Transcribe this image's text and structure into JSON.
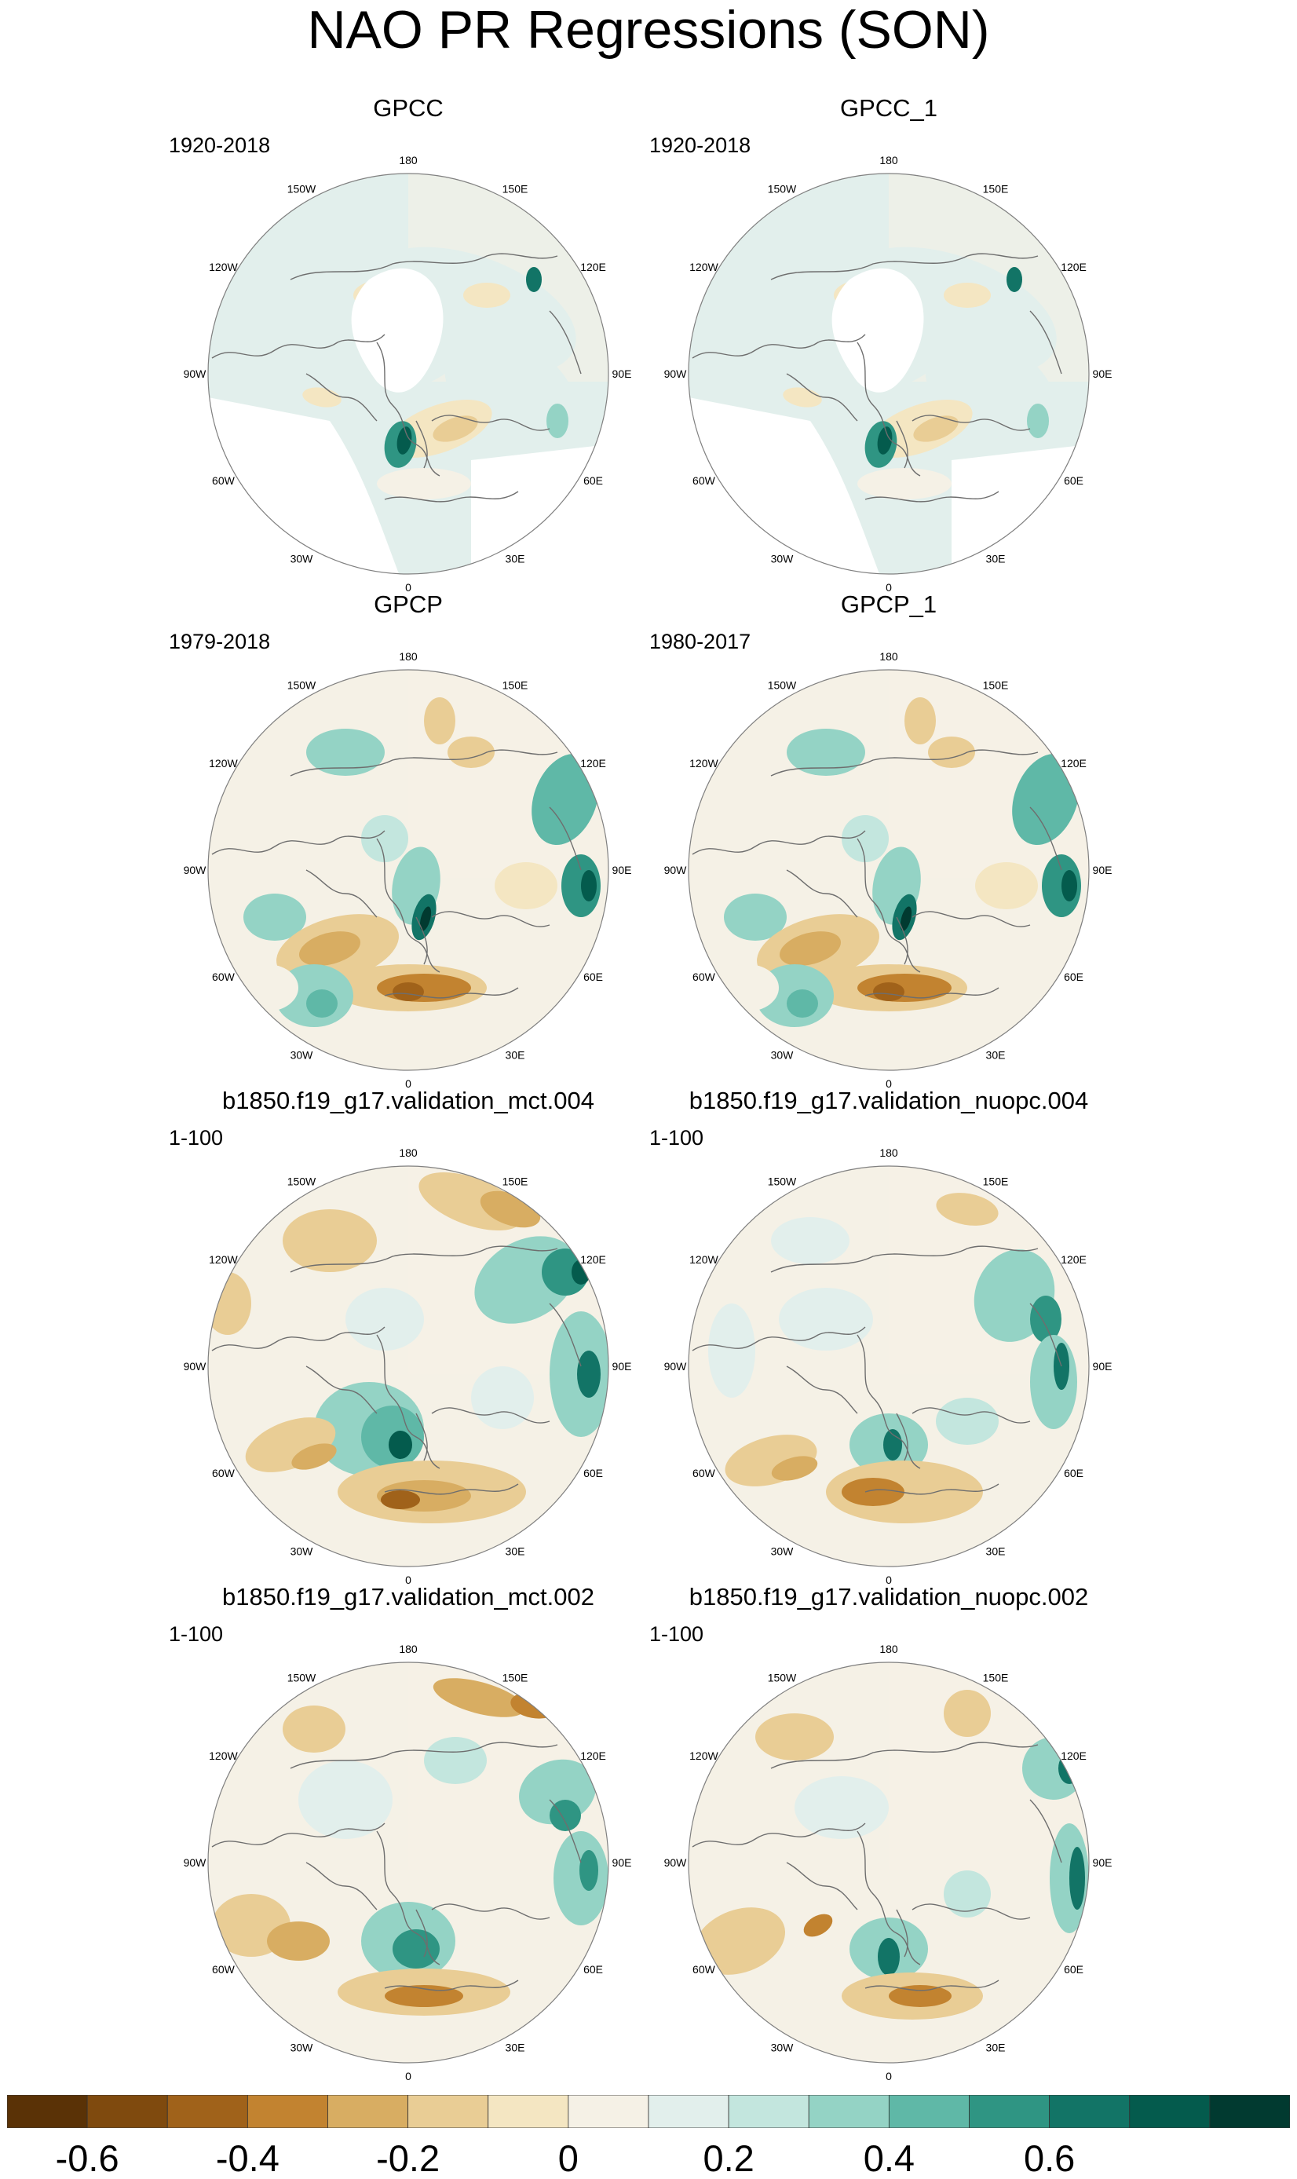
{
  "title": "NAO PR Regressions (SON)",
  "panels": [
    {
      "id": "gpcc",
      "title": "GPCC",
      "period": "1920-2018"
    },
    {
      "id": "gpcc-1",
      "title": "GPCC_1",
      "period": "1920-2018"
    },
    {
      "id": "gpcp",
      "title": "GPCP",
      "period": "1979-2018"
    },
    {
      "id": "gpcp-1",
      "title": "GPCP_1",
      "period": "1980-2017"
    },
    {
      "id": "mct-004",
      "title": "b1850.f19_g17.validation_mct.004",
      "period": "1-100"
    },
    {
      "id": "nuopc-004",
      "title": "b1850.f19_g17.validation_nuopc.004",
      "period": "1-100"
    },
    {
      "id": "mct-002",
      "title": "b1850.f19_g17.validation_mct.002",
      "period": "1-100"
    },
    {
      "id": "nuopc-002",
      "title": "b1850.f19_g17.validation_nuopc.002",
      "period": "1-100"
    }
  ],
  "longitude_labels": [
    "180",
    "150E",
    "120E",
    "90E",
    "60E",
    "30E",
    "0",
    "30W",
    "60W",
    "90W",
    "120W",
    "150W"
  ],
  "colorbar": {
    "colors": [
      "#5a3206",
      "#7f4a0e",
      "#a0621a",
      "#c28330",
      "#d8ad62",
      "#e9cd95",
      "#f4e6c2",
      "#f5f1e6",
      "#e2efec",
      "#c3e6de",
      "#94d3c5",
      "#5fb8a7",
      "#2f9583",
      "#127466",
      "#045b4d",
      "#013a30"
    ],
    "labels": [
      "-0.6",
      "-0.4",
      "-0.2",
      "0",
      "0.2",
      "0.4",
      "0.6"
    ]
  },
  "colors": {
    "land_outline": "#6e6e6e",
    "map_border": "#808080",
    "no_data": "#ffffff"
  }
}
